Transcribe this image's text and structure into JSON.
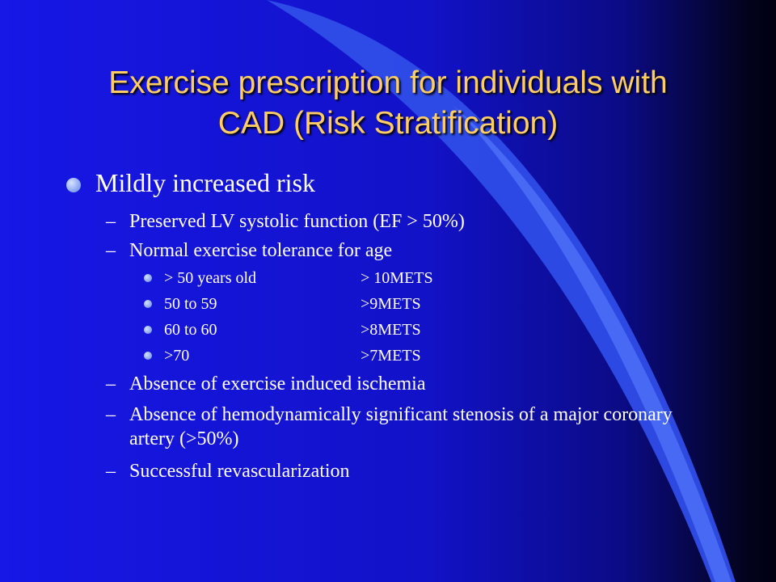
{
  "slide": {
    "title_line1": "Exercise prescription for individuals with",
    "title_line2": "CAD (Risk Stratification)",
    "heading": "Mildly increased risk",
    "items": [
      "Preserved LV systolic function (EF > 50%)",
      "Normal exercise tolerance for age",
      "Absence of exercise induced ischemia",
      "Absence of hemodynamically significant stenosis of a major coronary artery (>50%)",
      "Successful revascularization"
    ],
    "age_table": [
      {
        "age": "> 50 years old",
        "mets": "> 10METS"
      },
      {
        "age": "50 to 59",
        "mets": ">9METS"
      },
      {
        "age": "60 to 60",
        "mets": ">8METS"
      },
      {
        "age": ">70",
        "mets": ">7METS"
      }
    ],
    "dash_char": "–"
  },
  "colors": {
    "background": "#1414d9",
    "title": "#ffcc66",
    "body_text": "#ffffff",
    "accent_swoosh": "#3a5cf0",
    "bullet": "#8fa9f0"
  }
}
